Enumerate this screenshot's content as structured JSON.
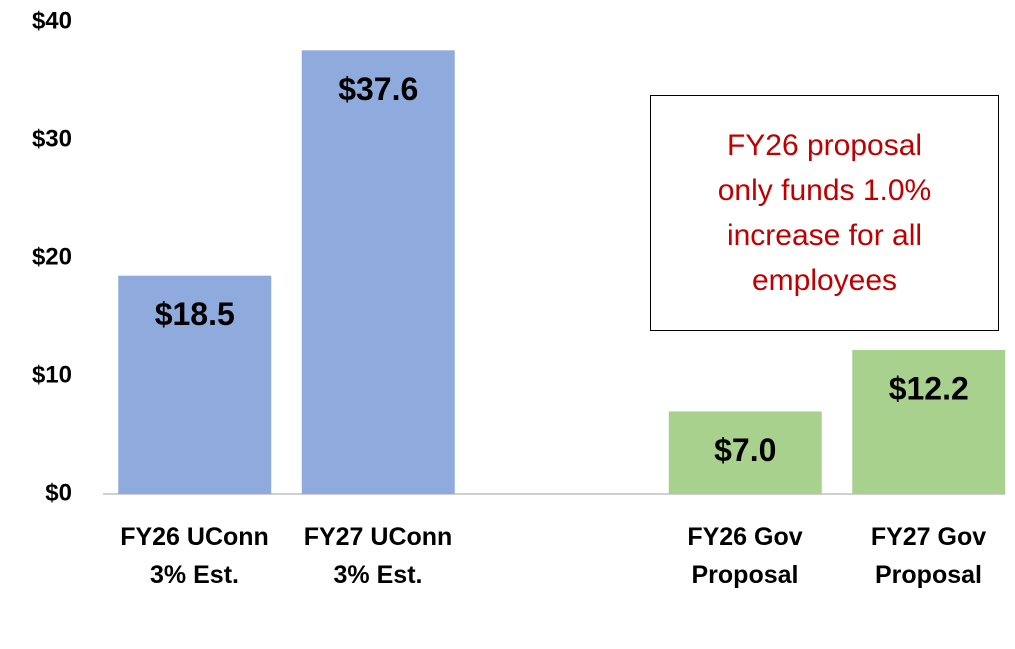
{
  "chart_data": {
    "type": "bar",
    "categories": [
      "FY26 UConn 3% Est.",
      "FY27 UConn 3% Est.",
      null,
      "FY26 Gov Proposal",
      "FY27 Gov Proposal"
    ],
    "values": [
      18.5,
      37.6,
      null,
      7.0,
      12.2
    ],
    "value_labels": [
      "$18.5",
      "$37.6",
      null,
      "$7.0",
      "$12.2"
    ],
    "colors": [
      "#8faadc",
      "#8faadc",
      null,
      "#a9d18e",
      "#a9d18e"
    ],
    "ylim": [
      0,
      40
    ],
    "yticks": [
      {
        "value": 0,
        "label": "$0"
      },
      {
        "value": 10,
        "label": "$10"
      },
      {
        "value": 20,
        "label": "$20"
      },
      {
        "value": 30,
        "label": "$30"
      },
      {
        "value": 40,
        "label": "$40"
      }
    ],
    "grid": false,
    "annotation": "FY26 proposal only funds 1.0% increase for all employees"
  }
}
